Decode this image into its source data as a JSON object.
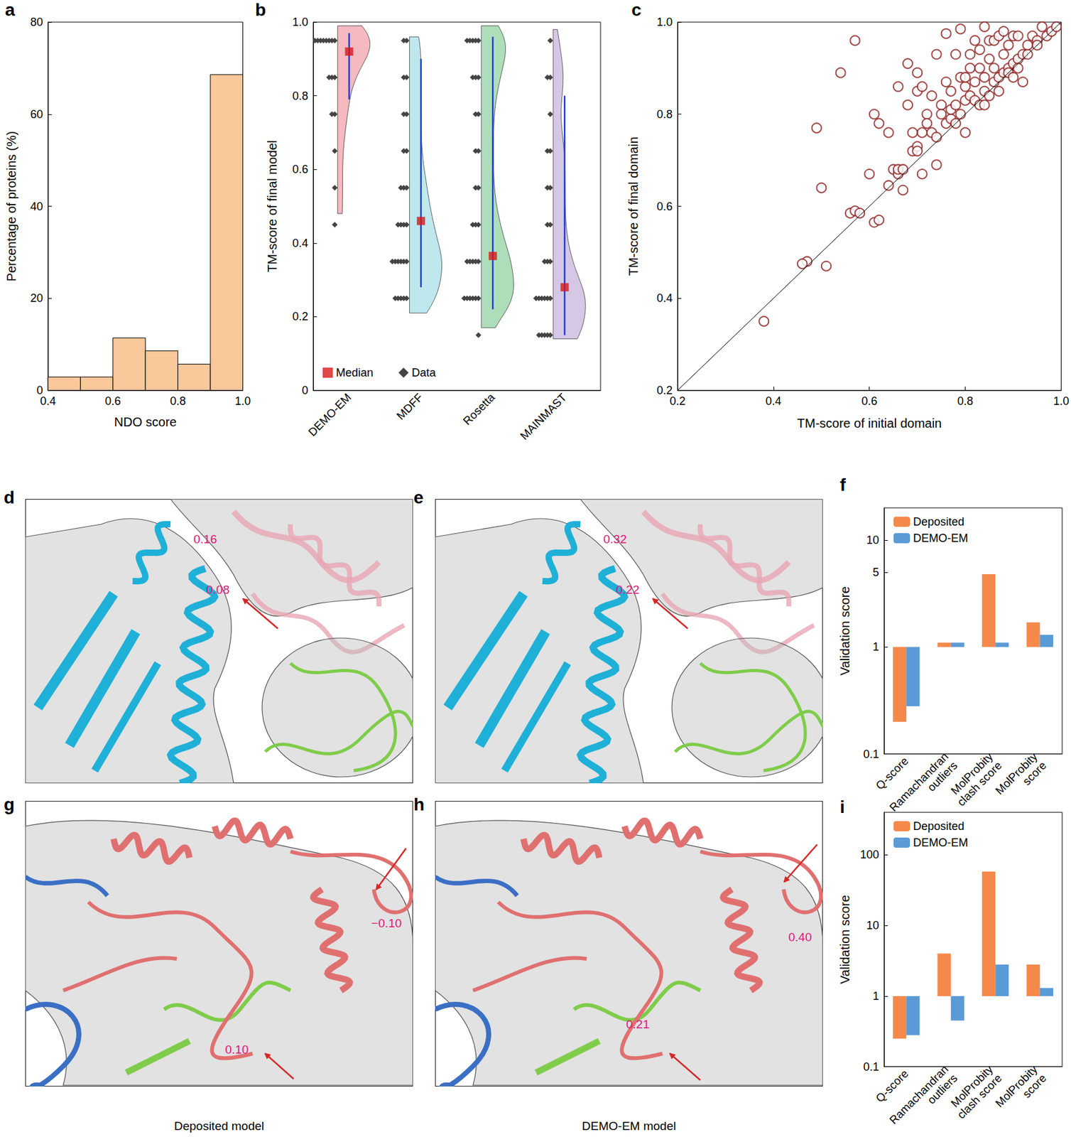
{
  "chart_data": [
    {
      "panel": "a",
      "type": "histogram",
      "xlabel": "NDO score",
      "ylabel": "Percentage of proteins (%)",
      "bins": [
        0.4,
        0.5,
        0.6,
        0.7,
        0.8,
        0.9,
        1.0
      ],
      "values": [
        2.9,
        2.9,
        11.4,
        8.6,
        5.7,
        68.6
      ],
      "color": "#f9c89b",
      "xlim": [
        0.4,
        1.0
      ],
      "xticks": [
        0.4,
        0.6,
        0.8,
        {
          "value": 1.0,
          "label": "1.0"
        }
      ],
      "ylim": [
        0,
        80
      ],
      "yticks": [
        0,
        20,
        40,
        60,
        80
      ]
    },
    {
      "panel": "b",
      "type": "violin",
      "ylabel": "TM-score of final model",
      "categories": [
        "DEMO-EM",
        "MDFF",
        "Rosetta",
        "MAINMAST"
      ],
      "colors": [
        "#f0a3aa",
        "#a9dfe8",
        "#93d3a2",
        "#c7b6de"
      ],
      "violin_ranges": [
        [
          0.48,
          0.99
        ],
        [
          0.21,
          0.96
        ],
        [
          0.17,
          0.99
        ],
        [
          0.14,
          0.98
        ]
      ],
      "whiskers": [
        [
          0.79,
          0.97
        ],
        [
          0.28,
          0.9
        ],
        [
          0.22,
          0.96
        ],
        [
          0.15,
          0.8
        ]
      ],
      "series": [
        {
          "name": "Median",
          "color": "#d7191c",
          "marker": "square",
          "values": [
            0.92,
            0.46,
            0.365,
            0.28
          ]
        },
        {
          "name": "Data",
          "color": "#444444",
          "marker": "diamond",
          "levels": [
            0.15,
            0.25,
            0.35,
            0.45,
            0.55,
            0.65,
            0.75,
            0.85,
            0.95
          ],
          "counts": [
            [
              0,
              0,
              0,
              1,
              1,
              1,
              2,
              3,
              9
            ],
            [
              0,
              5,
              6,
              4,
              3,
              2,
              2,
              2,
              2
            ],
            [
              1,
              6,
              5,
              3,
              2,
              2,
              2,
              3,
              5
            ],
            [
              5,
              6,
              3,
              2,
              2,
              2,
              1,
              2,
              1
            ]
          ]
        }
      ],
      "legend": "lower left",
      "ylim": [
        0,
        1.0
      ],
      "yticks": [
        0,
        0.2,
        0.4,
        0.6,
        0.8,
        {
          "value": 1.0,
          "label": "1.0"
        }
      ]
    },
    {
      "panel": "c",
      "type": "scatter",
      "xlabel": "TM-score of initial domain",
      "ylabel": "TM-score of final domain",
      "color": "#8b1a1a",
      "marker": "circle",
      "x": [
        0.38,
        0.47,
        0.46,
        0.51,
        0.49,
        0.5,
        0.54,
        0.57,
        0.56,
        0.57,
        0.58,
        0.6,
        0.61,
        0.61,
        0.62,
        0.62,
        0.64,
        0.64,
        0.65,
        0.66,
        0.66,
        0.67,
        0.67,
        0.66,
        0.68,
        0.68,
        0.69,
        0.69,
        0.7,
        0.7,
        0.7,
        0.7,
        0.71,
        0.71,
        0.71,
        0.72,
        0.72,
        0.73,
        0.73,
        0.74,
        0.74,
        0.74,
        0.75,
        0.75,
        0.76,
        0.76,
        0.76,
        0.77,
        0.77,
        0.77,
        0.78,
        0.78,
        0.79,
        0.79,
        0.79,
        0.8,
        0.8,
        0.8,
        0.81,
        0.81,
        0.81,
        0.82,
        0.82,
        0.82,
        0.83,
        0.83,
        0.83,
        0.84,
        0.84,
        0.84,
        0.85,
        0.85,
        0.85,
        0.86,
        0.86,
        0.86,
        0.87,
        0.87,
        0.87,
        0.88,
        0.88,
        0.88,
        0.89,
        0.89,
        0.89,
        0.9,
        0.9,
        0.9,
        0.91,
        0.91,
        0.91,
        0.92,
        0.92,
        0.93,
        0.93,
        0.94,
        0.95,
        0.95,
        0.96,
        0.97,
        0.98,
        0.99,
        0.8,
        0.78,
        0.84
      ],
      "values": [
        0.35,
        0.48,
        0.475,
        0.47,
        0.77,
        0.64,
        0.89,
        0.96,
        0.585,
        0.59,
        0.585,
        0.67,
        0.8,
        0.565,
        0.57,
        0.78,
        0.76,
        0.645,
        0.68,
        0.67,
        0.68,
        0.635,
        0.68,
        0.86,
        0.91,
        0.82,
        0.76,
        0.72,
        0.73,
        0.72,
        0.89,
        0.85,
        0.86,
        0.76,
        0.67,
        0.8,
        0.78,
        0.76,
        0.84,
        0.93,
        0.75,
        0.69,
        0.82,
        0.8,
        0.78,
        0.87,
        0.975,
        0.79,
        0.85,
        0.81,
        0.82,
        0.78,
        0.88,
        0.8,
        0.985,
        0.83,
        0.86,
        0.76,
        0.93,
        0.84,
        0.9,
        0.83,
        0.87,
        0.96,
        0.9,
        0.82,
        0.94,
        0.99,
        0.85,
        0.88,
        0.84,
        0.96,
        0.92,
        0.87,
        0.9,
        0.96,
        0.88,
        0.97,
        0.85,
        0.89,
        0.93,
        0.98,
        0.9,
        0.89,
        0.95,
        0.91,
        0.97,
        0.88,
        0.92,
        0.9,
        0.97,
        0.93,
        0.87,
        0.95,
        0.93,
        0.97,
        0.96,
        0.95,
        0.99,
        0.97,
        0.98,
        0.99,
        0.88,
        0.93,
        0.82
      ],
      "xlim": [
        0.2,
        1.0
      ],
      "xticks": [
        0.2,
        0.4,
        0.6,
        0.8,
        {
          "value": 1.0,
          "label": "1.0"
        }
      ],
      "ylim": [
        0.2,
        1.0
      ],
      "yticks": [
        0.2,
        0.4,
        0.6,
        0.8,
        {
          "value": 1.0,
          "label": "1.0"
        }
      ]
    },
    {
      "panel": "f",
      "type": "bar",
      "log": "y",
      "ylabel": "Validation score",
      "categories": [
        "Q-score",
        "Ramachandran\noutliers",
        "MolProbity\nclash score",
        "MolProbity\nscore"
      ],
      "series": [
        {
          "name": "Deposited",
          "color": "#f4894b",
          "values": [
            0.2,
            1.1,
            4.8,
            1.7
          ]
        },
        {
          "name": "DEMO-EM",
          "color": "#5b9bd5",
          "values": [
            0.28,
            1.1,
            1.1,
            1.3
          ]
        }
      ],
      "legend": "upper left",
      "ylim": [
        0.1,
        20
      ],
      "yticks": [
        0.1,
        1,
        5,
        10
      ]
    },
    {
      "panel": "i",
      "type": "bar",
      "log": "y",
      "ylabel": "Validation score",
      "categories": [
        "Q-score",
        "Ramachandran\noutliers",
        "MolProbity\nclash score",
        "MolProbity\nscore"
      ],
      "series": [
        {
          "name": "Deposited",
          "color": "#f4894b",
          "values": [
            0.25,
            4.0,
            58,
            2.8
          ]
        },
        {
          "name": "DEMO-EM",
          "color": "#5b9bd5",
          "values": [
            0.28,
            0.45,
            2.8,
            1.3
          ]
        }
      ],
      "legend": "upper left",
      "ylim": [
        0.1,
        400
      ],
      "yticks": [
        0.1,
        1,
        10,
        100
      ]
    }
  ],
  "image_panels": [
    {
      "panel": "d",
      "labels": [
        "0.16",
        "0.08"
      ]
    },
    {
      "panel": "e",
      "labels": [
        "0.32",
        "0.22"
      ]
    },
    {
      "panel": "g",
      "labels": [
        "−0.10",
        "0.10"
      ],
      "caption": "Deposited model"
    },
    {
      "panel": "h",
      "labels": [
        "0.40",
        "0.21"
      ],
      "caption": "DEMO-EM model"
    }
  ]
}
